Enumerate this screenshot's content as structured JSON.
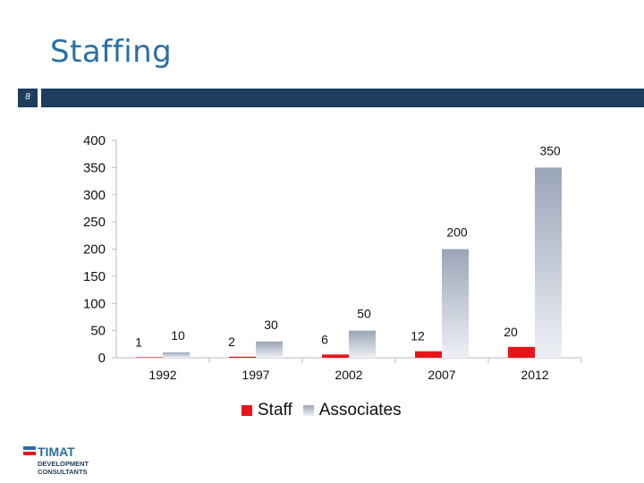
{
  "slide": {
    "title": "Staffing",
    "number": "8"
  },
  "colors": {
    "header_bar": "#1f3d5c",
    "title": "#2a6fa6",
    "staff": "#e8141c",
    "associates_top": "#9aa5b8",
    "associates_bottom": "#eef0f5"
  },
  "chart_data": {
    "type": "bar",
    "title": "",
    "xlabel": "",
    "ylabel": "",
    "ylim": [
      0,
      400
    ],
    "yticks": [
      "0",
      "50",
      "100",
      "150",
      "200",
      "250",
      "300",
      "350",
      "400"
    ],
    "categories": [
      "1992",
      "1997",
      "2002",
      "2007",
      "2012"
    ],
    "series": [
      {
        "name": "Staff",
        "values": [
          1,
          2,
          6,
          12,
          20
        ],
        "labels": [
          "1",
          "2",
          "6",
          "12",
          "20"
        ]
      },
      {
        "name": "Associates",
        "values": [
          10,
          30,
          50,
          200,
          350
        ],
        "labels": [
          "10",
          "30",
          "50",
          "200",
          "350"
        ]
      }
    ],
    "legend_position": "bottom"
  },
  "logo": {
    "brand": "TIMAT",
    "line1": "DEVELOPMENT",
    "line2": "CONSULTANTS"
  }
}
